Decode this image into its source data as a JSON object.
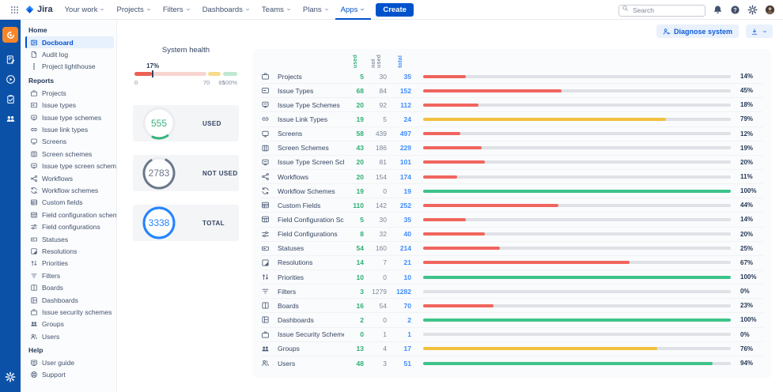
{
  "topnav": {
    "brand": "Jira",
    "items": [
      {
        "label": "Your work"
      },
      {
        "label": "Projects"
      },
      {
        "label": "Filters"
      },
      {
        "label": "Dashboards"
      },
      {
        "label": "Teams"
      },
      {
        "label": "Plans"
      },
      {
        "label": "Apps",
        "active": true
      }
    ],
    "create_label": "Create",
    "search_placeholder": "Search",
    "right_icons": [
      "bell-icon",
      "help-icon",
      "gear-icon",
      "avatar"
    ]
  },
  "app_sidebar": {
    "top_icons": [
      "docboard-app-tile",
      "form-icon",
      "circle-arrow-icon",
      "clipboard-icon",
      "people-icon"
    ],
    "bottom_icons": [
      "gear-icon"
    ]
  },
  "sidebar": {
    "sections": [
      {
        "title": "Home",
        "items": [
          {
            "label": "Docboard",
            "icon": "docboard-icon",
            "active": true
          },
          {
            "label": "Audit log",
            "icon": "audit-icon"
          },
          {
            "label": "Project lighthouse",
            "icon": "lighthouse-icon"
          }
        ]
      },
      {
        "title": "Reports",
        "items": [
          {
            "label": "Projects",
            "icon": "briefcase-icon"
          },
          {
            "label": "Issue types",
            "icon": "card-icon"
          },
          {
            "label": "Issue type schemes",
            "icon": "monitor-scheme-icon"
          },
          {
            "label": "Issue link types",
            "icon": "link-icon"
          },
          {
            "label": "Screens",
            "icon": "monitor-icon"
          },
          {
            "label": "Screen schemes",
            "icon": "columns-icon"
          },
          {
            "label": "Issue type screen schemes",
            "icon": "monitor-scheme-icon"
          },
          {
            "label": "Workflows",
            "icon": "workflow-icon"
          },
          {
            "label": "Workflow schemes",
            "icon": "refresh-icon"
          },
          {
            "label": "Custom fields",
            "icon": "table-grid-icon"
          },
          {
            "label": "Field configuration schemes",
            "icon": "grid-scheme-icon"
          },
          {
            "label": "Field configurations",
            "icon": "sliders-icon"
          },
          {
            "label": "Statuses",
            "icon": "status-icon"
          },
          {
            "label": "Resolutions",
            "icon": "resolution-icon"
          },
          {
            "label": "Priorities",
            "icon": "priorities-icon"
          },
          {
            "label": "Filters",
            "icon": "filter-icon"
          },
          {
            "label": "Boards",
            "icon": "board-icon"
          },
          {
            "label": "Dashboards",
            "icon": "dashboard-icon"
          },
          {
            "label": "Issue security schemes",
            "icon": "briefcase-icon"
          },
          {
            "label": "Groups",
            "icon": "groups-icon"
          },
          {
            "label": "Users",
            "icon": "users-icon"
          }
        ]
      },
      {
        "title": "Help",
        "items": [
          {
            "label": "User guide",
            "icon": "book-icon"
          },
          {
            "label": "Support",
            "icon": "support-icon"
          }
        ]
      }
    ]
  },
  "toolbar": {
    "diagnose_label": "Diagnose system"
  },
  "system_health": {
    "title": "System health",
    "value_pct": 17,
    "value_label": "17%",
    "scale": {
      "start_label": "0",
      "warn": 70,
      "warn_label": "70",
      "ok": 85,
      "ok_label": "85",
      "end_label": "100%"
    }
  },
  "stats": [
    {
      "value": "555",
      "label": "USED",
      "color": "#36B37E",
      "track": "#EBECF0"
    },
    {
      "value": "2783",
      "label": "NOT USED",
      "color": "#6B778C",
      "track": "#EBECF0"
    },
    {
      "value": "3338",
      "label": "TOTAL",
      "color": "#2684FF",
      "track": "#2684FF"
    }
  ],
  "colors": {
    "bar_red": "#F0655E",
    "bar_yellow": "#F2C13E",
    "bar_green": "#3DC38A",
    "accent_blue": "#0052CC"
  },
  "table": {
    "columns": [
      "used",
      "not used",
      "total"
    ],
    "thresholds": {
      "warn": 70,
      "ok": 85
    },
    "rows": [
      {
        "icon": "briefcase-icon",
        "name": "Projects",
        "used": 5,
        "not_used": 30,
        "total": 35,
        "pct": 14
      },
      {
        "icon": "card-icon",
        "name": "Issue Types",
        "used": 68,
        "not_used": 84,
        "total": 152,
        "pct": 45
      },
      {
        "icon": "monitor-scheme-icon",
        "name": "Issue Type Schemes",
        "used": 20,
        "not_used": 92,
        "total": 112,
        "pct": 18
      },
      {
        "icon": "link-icon",
        "name": "Issue Link Types",
        "used": 19,
        "not_used": 5,
        "total": 24,
        "pct": 79
      },
      {
        "icon": "monitor-icon",
        "name": "Screens",
        "used": 58,
        "not_used": 439,
        "total": 497,
        "pct": 12
      },
      {
        "icon": "columns-icon",
        "name": "Screen Schemes",
        "used": 43,
        "not_used": 186,
        "total": 229,
        "pct": 19
      },
      {
        "icon": "monitor-scheme-icon",
        "name": "Issue Type Screen Schemes",
        "used": 20,
        "not_used": 81,
        "total": 101,
        "pct": 20
      },
      {
        "icon": "workflow-icon",
        "name": "Workflows",
        "used": 20,
        "not_used": 154,
        "total": 174,
        "pct": 11
      },
      {
        "icon": "refresh-icon",
        "name": "Workflow Schemes",
        "used": 19,
        "not_used": 0,
        "total": 19,
        "pct": 100
      },
      {
        "icon": "table-grid-icon",
        "name": "Custom Fields",
        "used": 110,
        "not_used": 142,
        "total": 252,
        "pct": 44
      },
      {
        "icon": "grid-scheme-icon",
        "name": "Field Configuration Schemes",
        "used": 5,
        "not_used": 30,
        "total": 35,
        "pct": 14
      },
      {
        "icon": "sliders-icon",
        "name": "Field Configurations",
        "used": 8,
        "not_used": 32,
        "total": 40,
        "pct": 20
      },
      {
        "icon": "status-icon",
        "name": "Statuses",
        "used": 54,
        "not_used": 160,
        "total": 214,
        "pct": 25
      },
      {
        "icon": "resolution-icon",
        "name": "Resolutions",
        "used": 14,
        "not_used": 7,
        "total": 21,
        "pct": 67
      },
      {
        "icon": "priorities-icon",
        "name": "Priorities",
        "used": 10,
        "not_used": 0,
        "total": 10,
        "pct": 100
      },
      {
        "icon": "filter-icon",
        "name": "Filters",
        "used": 3,
        "not_used": 1279,
        "total": 1282,
        "pct": 0
      },
      {
        "icon": "board-icon",
        "name": "Boards",
        "used": 16,
        "not_used": 54,
        "total": 70,
        "pct": 23
      },
      {
        "icon": "dashboard-icon",
        "name": "Dashboards",
        "used": 2,
        "not_used": 0,
        "total": 2,
        "pct": 100
      },
      {
        "icon": "briefcase-icon",
        "name": "Issue Security Schemes",
        "used": 0,
        "not_used": 1,
        "total": 1,
        "pct": 0
      },
      {
        "icon": "groups-icon",
        "name": "Groups",
        "used": 13,
        "not_used": 4,
        "total": 17,
        "pct": 76
      },
      {
        "icon": "users-icon",
        "name": "Users",
        "used": 48,
        "not_used": 3,
        "total": 51,
        "pct": 94
      }
    ]
  }
}
